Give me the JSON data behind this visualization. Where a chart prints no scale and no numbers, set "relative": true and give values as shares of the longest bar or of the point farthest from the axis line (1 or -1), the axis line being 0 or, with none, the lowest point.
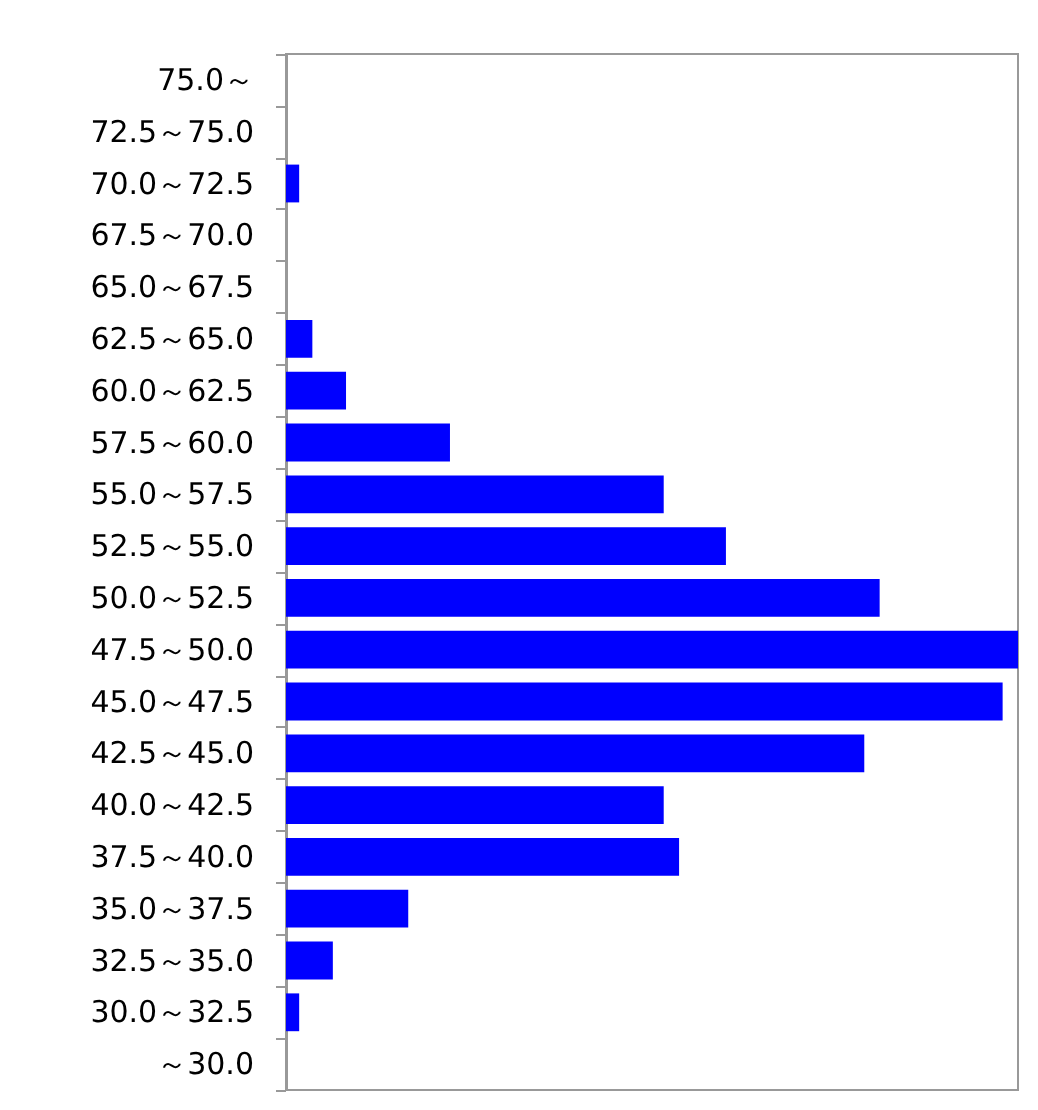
{
  "chart_data": {
    "type": "bar",
    "orientation": "horizontal",
    "relative": true,
    "color": "#0000ff",
    "categories": [
      "75.0～",
      "72.5～75.0",
      "70.0～72.5",
      "67.5～70.0",
      "65.0～67.5",
      "62.5～65.0",
      "60.0～62.5",
      "57.5～60.0",
      "55.0～57.5",
      "52.5～55.0",
      "50.0～52.5",
      "47.5～50.0",
      "45.0～47.5",
      "42.5～45.0",
      "40.0～42.5",
      "37.5～40.0",
      "35.0～37.5",
      "32.5～35.0",
      "30.0～32.5",
      "～30.0"
    ],
    "values": [
      0,
      0,
      0.018,
      0,
      0,
      0.036,
      0.082,
      0.224,
      0.516,
      0.601,
      0.811,
      1,
      0.979,
      0.79,
      0.516,
      0.537,
      0.167,
      0.064,
      0.018,
      0
    ]
  }
}
